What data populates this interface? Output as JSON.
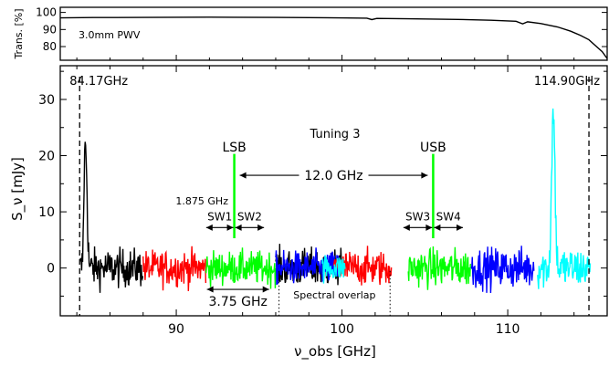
{
  "chart_data": [
    {
      "type": "line",
      "panel": "transmission",
      "ylabel": "Trans. [%]",
      "ylim": [
        72,
        103
      ],
      "yticks": [
        80,
        90,
        100
      ],
      "xlim": [
        83,
        116
      ],
      "annotation": "3.0mm PWV",
      "series": [
        {
          "color": "#000000",
          "x": [
            83.0,
            85.0,
            88.0,
            92.0,
            96.0,
            99.0,
            101.5,
            101.8,
            102.1,
            104.0,
            107.0,
            109.0,
            110.5,
            110.9,
            111.2,
            112.0,
            113.0,
            113.8,
            114.4,
            114.9,
            115.3,
            115.7,
            116.0
          ],
          "y": [
            96.8,
            97.0,
            97.1,
            97.2,
            97.1,
            96.9,
            96.6,
            95.8,
            96.5,
            96.3,
            95.9,
            95.4,
            94.8,
            93.3,
            94.5,
            93.5,
            91.5,
            89.0,
            86.5,
            84.0,
            80.5,
            77.0,
            73.0
          ]
        }
      ]
    },
    {
      "type": "line",
      "panel": "spectrum",
      "title": "Tuning 3",
      "xlabel": "ν_obs [GHz]",
      "ylabel": "S_ν [mJy]",
      "xlim": [
        83,
        116
      ],
      "ylim": [
        -8.5,
        36
      ],
      "xticks": [
        90,
        100,
        110
      ],
      "yticks": [
        0,
        10,
        20,
        30
      ],
      "spectral_windows": [
        {
          "range": [
            84.2,
            88.0
          ],
          "color": "#000000",
          "noise": 1.7
        },
        {
          "range": [
            88.0,
            91.8
          ],
          "color": "#ff0000",
          "noise": 1.6
        },
        {
          "range": [
            91.8,
            96.0
          ],
          "color": "#00ff00",
          "noise": 1.5
        },
        {
          "range": [
            96.0,
            100.0
          ],
          "color": "#000000",
          "noise": 1.7
        },
        {
          "range": [
            96.0,
            99.8
          ],
          "color": "#0000ff",
          "noise": 1.5
        },
        {
          "range": [
            99.5,
            103.0
          ],
          "color": "#ff0000",
          "noise": 1.6
        },
        {
          "range": [
            98.8,
            100.2
          ],
          "color": "#00ffff",
          "noise": 1.2
        },
        {
          "range": [
            104.0,
            107.8
          ],
          "color": "#00ff00",
          "noise": 1.7
        },
        {
          "range": [
            107.8,
            111.6
          ],
          "color": "#0000ff",
          "noise": 1.8
        },
        {
          "range": [
            111.8,
            115.0
          ],
          "color": "#00ffff",
          "noise": 1.9
        }
      ],
      "lines": [
        {
          "center": 84.55,
          "peak": 19.5,
          "width": 0.08,
          "color": "#000000"
        },
        {
          "center": 84.45,
          "peak": 8.5,
          "width": 0.05,
          "color": "#000000"
        },
        {
          "center": 112.75,
          "peak": 28.0,
          "width": 0.1,
          "color": "#00ffff"
        }
      ],
      "edge_markers": [
        {
          "x": 84.17,
          "label": "84.17GHz"
        },
        {
          "x": 114.9,
          "label": "114.90GHz"
        }
      ],
      "overlap_markers": [
        96.2,
        102.9
      ],
      "overlap_label": "Spectral overlap",
      "lo_lines": [
        {
          "x": 93.5,
          "label": "LSB"
        },
        {
          "x": 105.5,
          "label": "USB"
        }
      ],
      "lo_separation_label": "12.0 GHz",
      "sw_width_label": "1.875 GHz",
      "sw_labels": [
        "SW1",
        "SW2",
        "SW3",
        "SW4"
      ],
      "sideband_width_label": "3.75 GHz"
    }
  ]
}
